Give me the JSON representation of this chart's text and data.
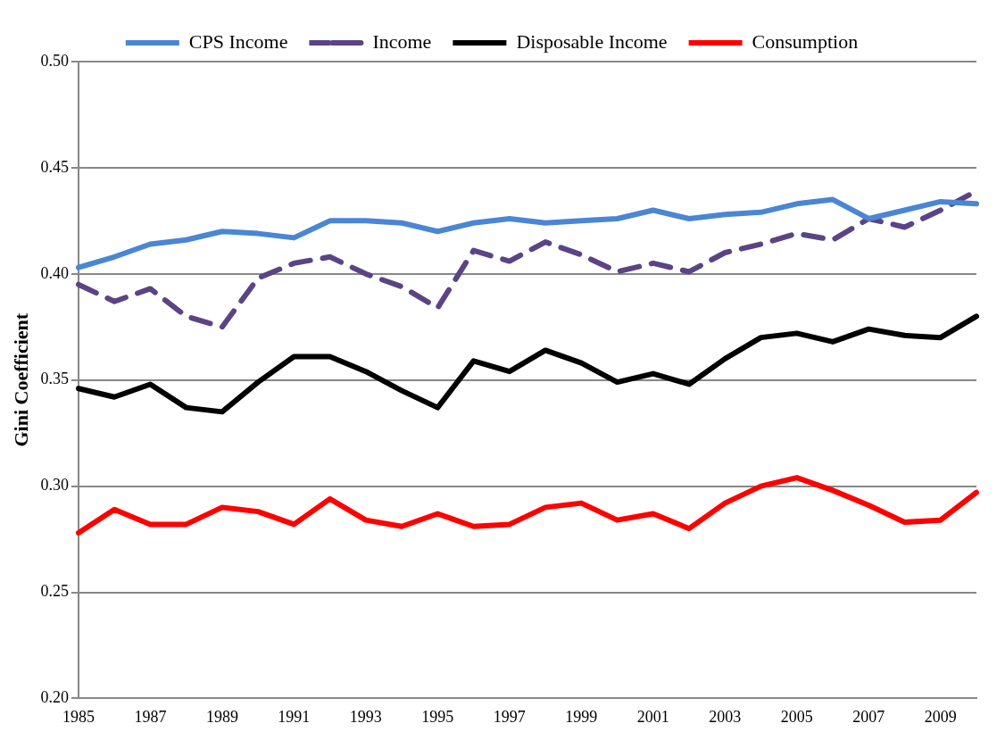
{
  "chart_data": {
    "type": "line",
    "ylabel": "Gini Coefficient",
    "categories": [
      "1985",
      null,
      "1987",
      null,
      "1989",
      null,
      "1991",
      null,
      "1993",
      null,
      "1995",
      null,
      "1997",
      null,
      "1999",
      null,
      "2001",
      null,
      "2003",
      null,
      "2005",
      null,
      "2007",
      null,
      "2009",
      null
    ],
    "series": [
      {
        "name": "CPS Income",
        "color": "#4a86d4",
        "line_style": "solid",
        "values": [
          0.403,
          0.408,
          0.414,
          0.416,
          0.42,
          0.419,
          0.417,
          0.425,
          0.425,
          0.424,
          0.42,
          0.424,
          0.426,
          0.424,
          0.425,
          0.426,
          0.43,
          0.426,
          0.428,
          0.429,
          0.433,
          0.435,
          0.426,
          0.43,
          0.434,
          0.433
        ]
      },
      {
        "name": "Income",
        "color": "#5b4485",
        "line_style": "dashed",
        "values": [
          0.395,
          0.387,
          0.393,
          0.38,
          0.375,
          0.398,
          0.405,
          0.408,
          0.4,
          0.394,
          0.384,
          0.411,
          0.406,
          0.415,
          0.409,
          0.401,
          0.405,
          0.401,
          0.41,
          0.414,
          0.419,
          0.416,
          0.426,
          0.422,
          0.43,
          0.439
        ]
      },
      {
        "name": "Disposable Income",
        "color": "#000000",
        "line_style": "solid",
        "values": [
          0.346,
          0.342,
          0.348,
          0.337,
          0.335,
          0.349,
          0.361,
          0.361,
          0.354,
          0.345,
          0.337,
          0.359,
          0.354,
          0.364,
          0.358,
          0.349,
          0.353,
          0.348,
          0.36,
          0.37,
          0.372,
          0.368,
          0.374,
          0.371,
          0.37,
          0.38
        ]
      },
      {
        "name": "Consumption",
        "color": "#ff0000",
        "line_style": "solid",
        "values": [
          0.278,
          0.289,
          0.282,
          0.282,
          0.29,
          0.288,
          0.282,
          0.294,
          0.284,
          0.281,
          0.287,
          0.281,
          0.282,
          0.29,
          0.292,
          0.284,
          0.287,
          0.28,
          0.292,
          0.3,
          0.304,
          0.298,
          0.291,
          0.283,
          0.284,
          0.297
        ]
      }
    ],
    "ylim": [
      0.2,
      0.5
    ],
    "yticks": [
      {
        "value": 0.2,
        "label": "0.20"
      },
      {
        "value": 0.25,
        "label": "0.25"
      },
      {
        "value": 0.3,
        "label": "0.30"
      },
      {
        "value": 0.35,
        "label": "0.35"
      },
      {
        "value": 0.4,
        "label": "0.40"
      },
      {
        "value": 0.45,
        "label": "0.45"
      },
      {
        "value": 0.5,
        "label": "0.50"
      }
    ],
    "grid": "y",
    "legend": "top",
    "marker": "none"
  }
}
